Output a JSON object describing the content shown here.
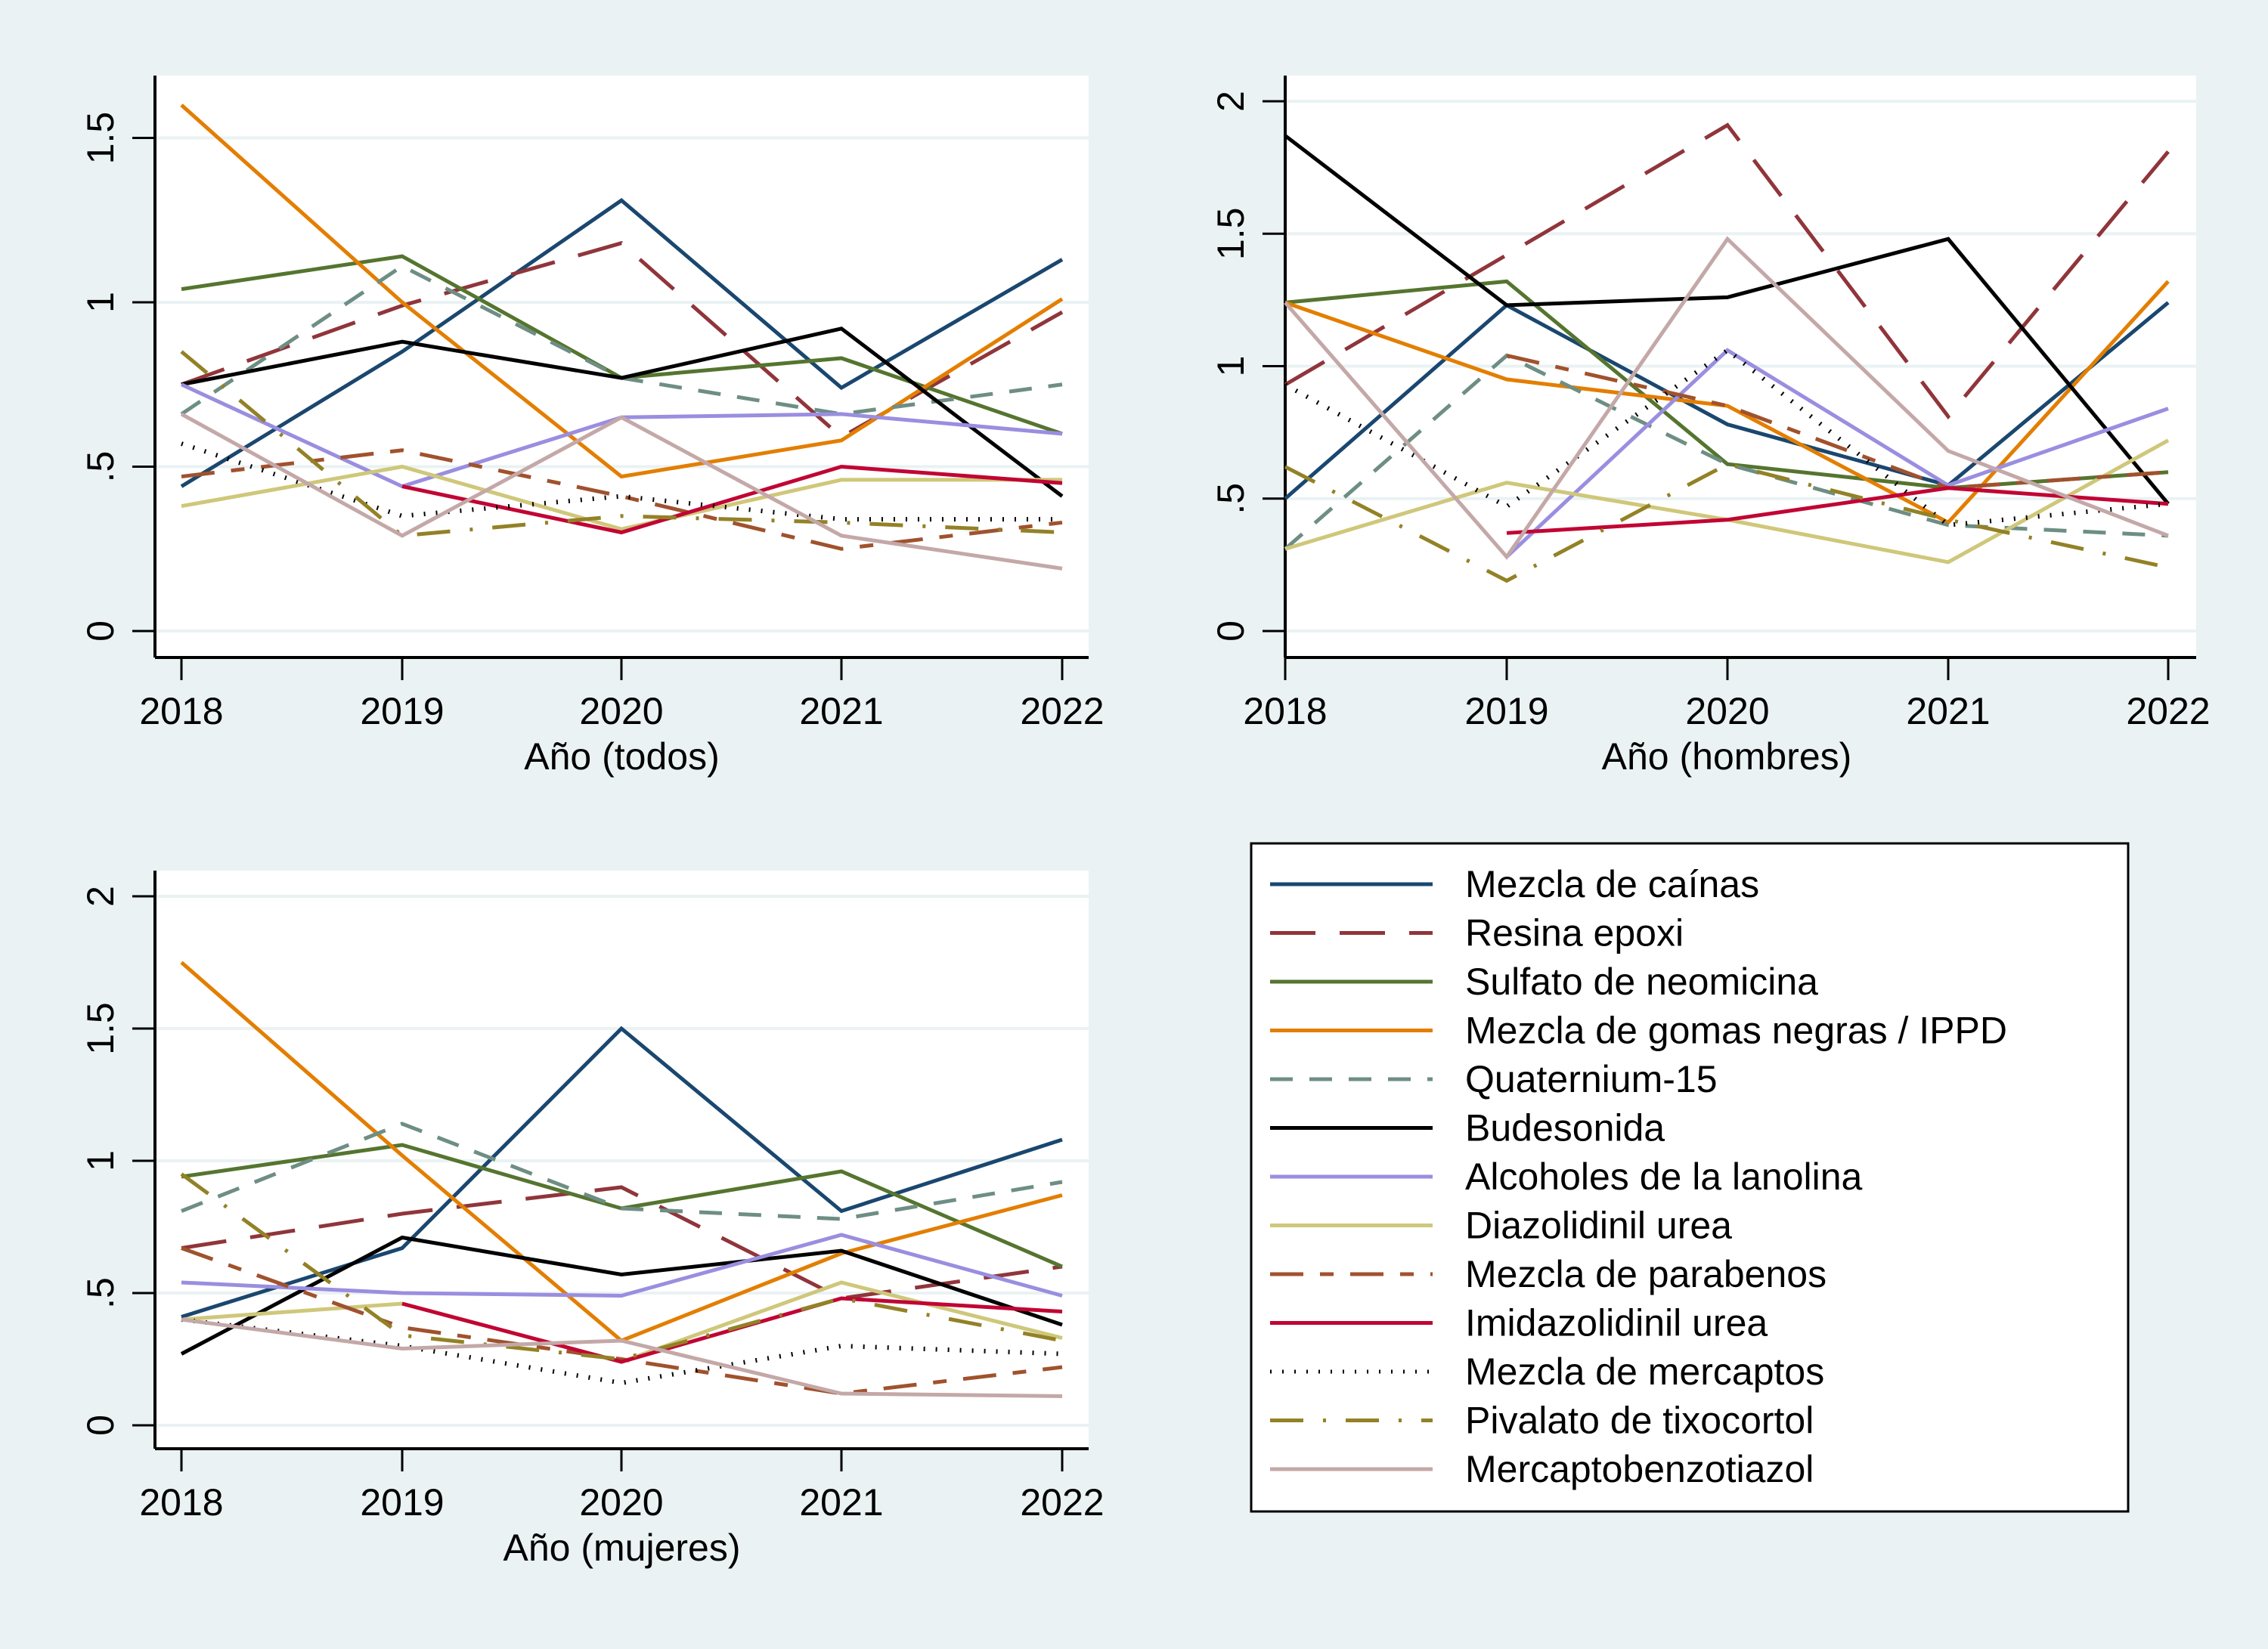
{
  "chart_data": [
    {
      "type": "line",
      "title": "",
      "xlabel": "Año (todos)",
      "ylabel": "",
      "x": [
        2018,
        2019,
        2020,
        2021,
        2022
      ],
      "xticks": [
        "2018",
        "2019",
        "2020",
        "2021",
        "2022"
      ],
      "yticks": [
        "0",
        ".5",
        "1",
        "1.5"
      ],
      "ytick_values": [
        0,
        0.5,
        1,
        1.5
      ],
      "ylim": [
        -0.08,
        1.68
      ],
      "grid": true,
      "series": [
        {
          "name": "Mezcla de caínas",
          "values": [
            0.44,
            0.85,
            1.31,
            0.74,
            1.13
          ]
        },
        {
          "name": "Resina epoxi",
          "values": [
            0.75,
            0.99,
            1.18,
            0.59,
            0.97
          ]
        },
        {
          "name": "Sulfato de neomicina",
          "values": [
            1.04,
            1.14,
            0.77,
            0.83,
            0.6
          ]
        },
        {
          "name": "Mezcla de gomas negras / IPPD",
          "values": [
            1.6,
            1.0,
            0.47,
            0.58,
            1.01
          ]
        },
        {
          "name": "Quaternium-15",
          "values": [
            0.66,
            1.11,
            0.77,
            0.66,
            0.75
          ]
        },
        {
          "name": "Budesonida",
          "values": [
            0.75,
            0.88,
            0.77,
            0.92,
            0.41
          ]
        },
        {
          "name": "Alcoholes de la lanolina",
          "values": [
            0.75,
            0.44,
            0.65,
            0.66,
            0.6
          ]
        },
        {
          "name": "Diazolidinil urea",
          "values": [
            0.38,
            0.5,
            0.31,
            0.46,
            0.46
          ]
        },
        {
          "name": "Mezcla de parabenos",
          "values": [
            0.47,
            0.55,
            0.41,
            0.25,
            0.33
          ]
        },
        {
          "name": "Imidazolidinil urea",
          "values": [
            null,
            0.44,
            0.3,
            0.5,
            0.45
          ]
        },
        {
          "name": "Mezcla de mercaptos",
          "values": [
            0.57,
            0.35,
            0.41,
            0.34,
            0.34
          ]
        },
        {
          "name": "Pivalato de tixocortol",
          "values": [
            0.85,
            0.29,
            0.35,
            0.33,
            0.3
          ]
        },
        {
          "name": "Mercaptobenzotiazol",
          "values": [
            0.66,
            0.29,
            0.65,
            0.29,
            0.19
          ]
        }
      ]
    },
    {
      "type": "line",
      "title": "",
      "xlabel": "Año (hombres)",
      "ylabel": "",
      "x": [
        2018,
        2019,
        2020,
        2021,
        2022
      ],
      "xticks": [
        "2018",
        "2019",
        "2020",
        "2021",
        "2022"
      ],
      "yticks": [
        "0",
        ".5",
        "1",
        "1.5",
        "2"
      ],
      "ytick_values": [
        0,
        0.5,
        1,
        1.5,
        2
      ],
      "ylim": [
        -0.1,
        2.1
      ],
      "grid": true,
      "series": [
        {
          "name": "Mezcla de caínas",
          "values": [
            0.5,
            1.23,
            0.78,
            0.55,
            1.24
          ]
        },
        {
          "name": "Resina epoxi",
          "values": [
            0.93,
            1.42,
            1.91,
            0.81,
            1.81
          ]
        },
        {
          "name": "Sulfato de neomicina",
          "values": [
            1.24,
            1.32,
            0.63,
            0.54,
            0.6
          ]
        },
        {
          "name": "Mezcla de gomas negras / IPPD",
          "values": [
            1.24,
            0.95,
            0.85,
            0.41,
            1.32
          ]
        },
        {
          "name": "Quaternium-15",
          "values": [
            0.31,
            1.04,
            0.63,
            0.4,
            0.36
          ]
        },
        {
          "name": "Budesonida",
          "values": [
            1.87,
            1.23,
            1.26,
            1.48,
            0.48
          ]
        },
        {
          "name": "Alcoholes de la lanolina",
          "values": [
            null,
            0.28,
            1.06,
            0.55,
            0.84
          ]
        },
        {
          "name": "Diazolidinil urea",
          "values": [
            0.31,
            0.56,
            0.42,
            0.26,
            0.72
          ]
        },
        {
          "name": "Mezcla de parabenos",
          "values": [
            null,
            1.04,
            0.85,
            0.54,
            0.6
          ]
        },
        {
          "name": "Imidazolidinil urea",
          "values": [
            null,
            0.37,
            0.42,
            0.54,
            0.48
          ]
        },
        {
          "name": "Mezcla de mercaptos",
          "values": [
            0.93,
            0.47,
            1.06,
            0.4,
            0.48
          ]
        },
        {
          "name": "Pivalato de tixocortol",
          "values": [
            0.62,
            0.19,
            0.63,
            0.42,
            0.24
          ]
        },
        {
          "name": "Mercaptobenzotiazol",
          "values": [
            1.24,
            0.28,
            1.48,
            0.68,
            0.36
          ]
        }
      ]
    },
    {
      "type": "line",
      "title": "",
      "xlabel": "Año (mujeres)",
      "ylabel": "",
      "x": [
        2018,
        2019,
        2020,
        2021,
        2022
      ],
      "xticks": [
        "2018",
        "2019",
        "2020",
        "2021",
        "2022"
      ],
      "yticks": [
        "0",
        ".5",
        "1",
        "1.5",
        "2"
      ],
      "ytick_values": [
        0,
        0.5,
        1,
        1.5,
        2
      ],
      "ylim": [
        -0.1,
        2.1
      ],
      "grid": true,
      "series": [
        {
          "name": "Mezcla de caínas",
          "values": [
            0.41,
            0.67,
            1.5,
            0.81,
            1.08
          ]
        },
        {
          "name": "Resina epoxi",
          "values": [
            0.67,
            0.8,
            0.9,
            0.48,
            0.6
          ]
        },
        {
          "name": "Sulfato de neomicina",
          "values": [
            0.94,
            1.06,
            0.82,
            0.96,
            0.6
          ]
        },
        {
          "name": "Mezcla de gomas negras / IPPD",
          "values": [
            1.75,
            1.02,
            0.32,
            0.65,
            0.87
          ]
        },
        {
          "name": "Quaternium-15",
          "values": [
            0.81,
            1.14,
            0.82,
            0.78,
            0.92
          ]
        },
        {
          "name": "Budesonida",
          "values": [
            0.27,
            0.71,
            0.57,
            0.66,
            0.38
          ]
        },
        {
          "name": "Alcoholes de la lanolina",
          "values": [
            0.54,
            0.5,
            0.49,
            0.72,
            0.49
          ]
        },
        {
          "name": "Diazolidinil urea",
          "values": [
            0.4,
            0.46,
            0.24,
            0.54,
            0.33
          ]
        },
        {
          "name": "Mezcla de parabenos",
          "values": [
            0.67,
            0.37,
            0.25,
            0.12,
            0.22
          ]
        },
        {
          "name": "Imidazolidinil urea",
          "values": [
            null,
            0.46,
            0.24,
            0.48,
            0.43
          ]
        },
        {
          "name": "Mezcla de mercaptos",
          "values": [
            0.4,
            0.3,
            0.16,
            0.3,
            0.27
          ]
        },
        {
          "name": "Pivalato de tixocortol",
          "values": [
            0.95,
            0.34,
            0.25,
            0.48,
            0.32
          ]
        },
        {
          "name": "Mercaptobenzotiazol",
          "values": [
            0.4,
            0.29,
            0.32,
            0.12,
            0.11
          ]
        }
      ]
    }
  ],
  "legend": {
    "placement": "bottom-right",
    "items": [
      {
        "label": "Mezcla de caínas",
        "color": "#1a476f",
        "style": "solid"
      },
      {
        "label": "Resina epoxi",
        "color": "#90353b",
        "style": "longdash"
      },
      {
        "label": "Sulfato de neomicina",
        "color": "#55752f",
        "style": "solid"
      },
      {
        "label": "Mezcla de gomas negras / IPPD",
        "color": "#e37e00",
        "style": "solid"
      },
      {
        "label": "Quaternium-15",
        "color": "#6e8e84",
        "style": "dash"
      },
      {
        "label": "Budesonida",
        "color": "#000000",
        "style": "solid"
      },
      {
        "label": "Alcoholes de la lanolina",
        "color": "#9a8ee0",
        "style": "solid"
      },
      {
        "label": "Diazolidinil urea",
        "color": "#cfc77a",
        "style": "solid"
      },
      {
        "label": "Mezcla de parabenos",
        "color": "#a0522d",
        "style": "longdash_shortdash"
      },
      {
        "label": "Imidazolidinil urea",
        "color": "#c10534",
        "style": "solid"
      },
      {
        "label": "Mezcla de mercaptos",
        "color": "#000000",
        "style": "dot"
      },
      {
        "label": "Pivalato de tixocortol",
        "color": "#938126",
        "style": "dash_dot"
      },
      {
        "label": "Mercaptobenzotiazol",
        "color": "#c4a8a8",
        "style": "solid"
      }
    ]
  }
}
